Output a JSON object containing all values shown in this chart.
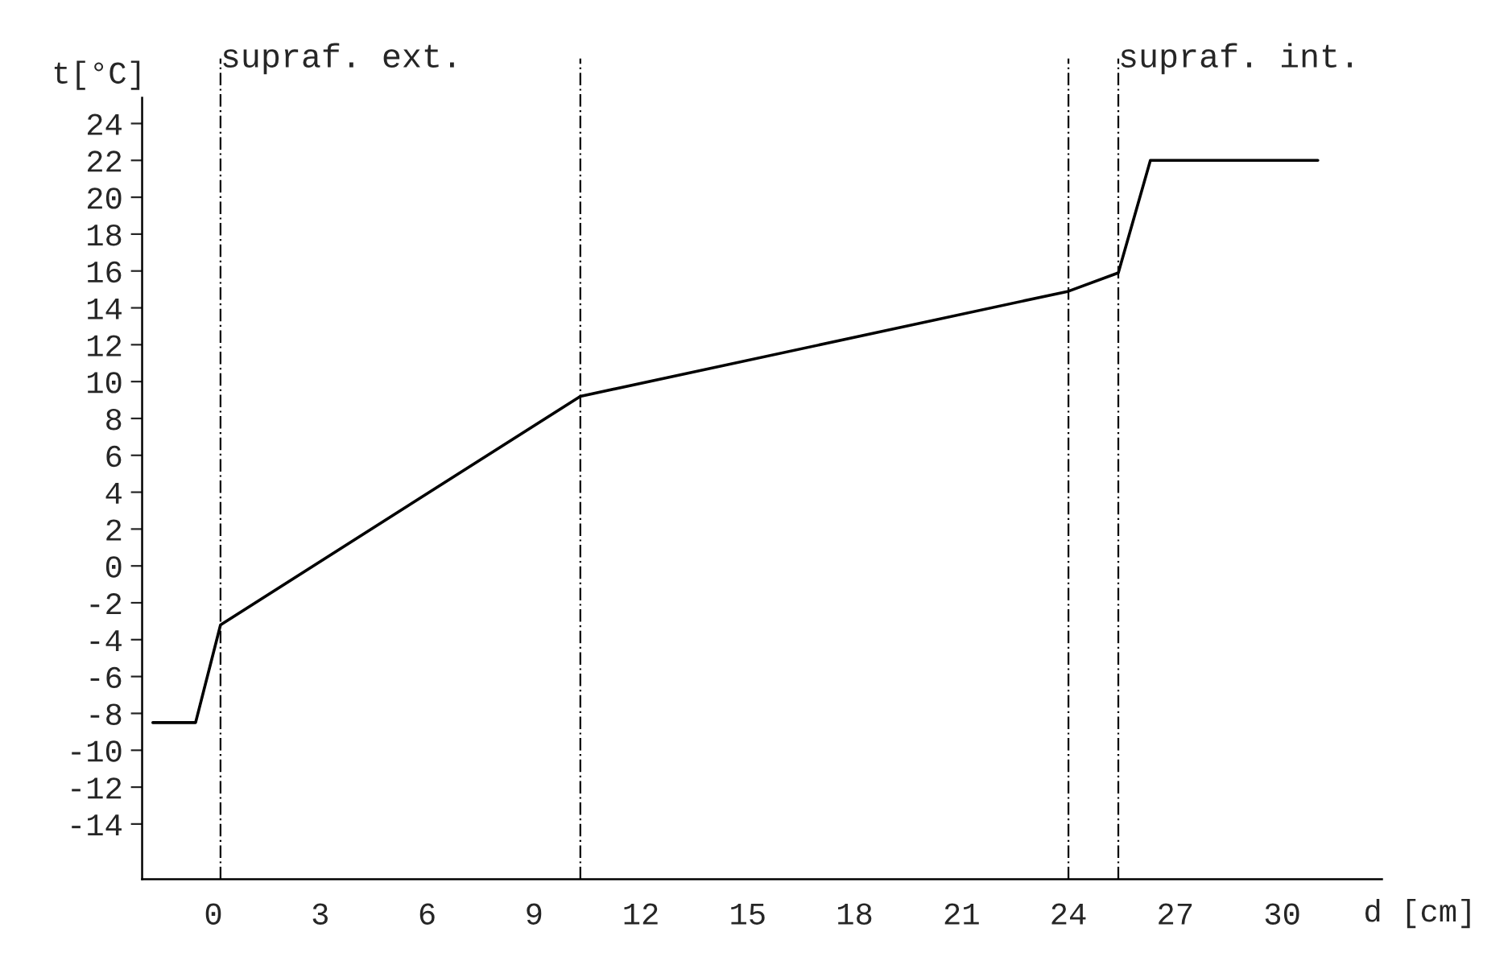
{
  "chart_data": {
    "type": "line",
    "xlabel": "d [cm]",
    "ylabel": "t[°C]",
    "x": [
      -1.7,
      -0.5,
      0.2,
      10.3,
      24.0,
      25.4,
      26.3,
      31.0
    ],
    "series": [
      {
        "color": "#000000",
        "values": [
          -8.5,
          -8.5,
          -3.2,
          9.2,
          14.9,
          15.9,
          22,
          22
        ]
      }
    ],
    "xlim": [
      -2,
      32.8
    ],
    "ylim": [
      -17,
      25.4
    ],
    "xticks": [
      0,
      3,
      6,
      9,
      12,
      15,
      18,
      21,
      24,
      27,
      30
    ],
    "yticks": [
      -14,
      -12,
      -10,
      -8,
      -6,
      -4,
      -2,
      0,
      2,
      4,
      6,
      8,
      10,
      12,
      14,
      16,
      18,
      20,
      22,
      24
    ],
    "ref_lines": [
      {
        "axis": "x",
        "value": 0.2,
        "label": "supraf. ext.",
        "line_style": "dashed"
      },
      {
        "axis": "x",
        "value": 10.3,
        "line_style": "dashed"
      },
      {
        "axis": "x",
        "value": 24.0,
        "line_style": "dashed"
      },
      {
        "axis": "x",
        "value": 25.4,
        "label": "supraf. int.",
        "line_style": "dashed"
      }
    ],
    "grid": false,
    "legend": false,
    "marker": "none",
    "line_style": "solid"
  }
}
